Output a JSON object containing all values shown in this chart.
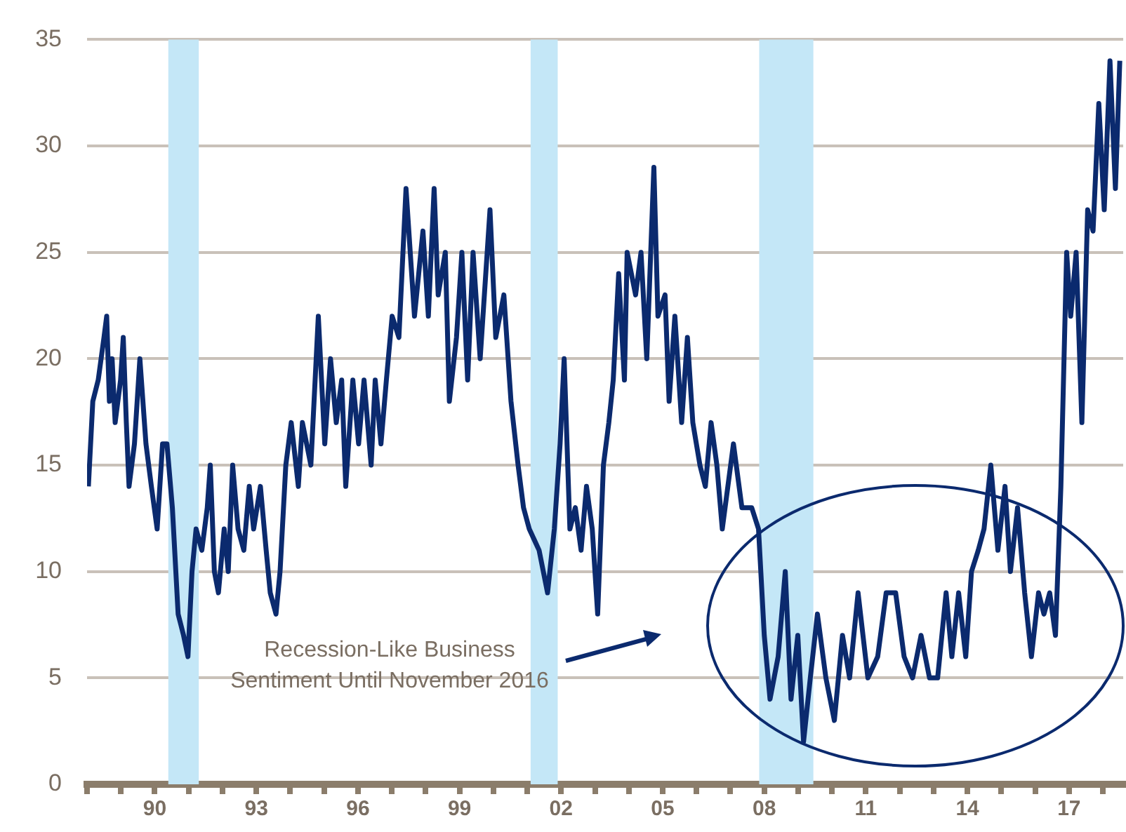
{
  "chart_data": {
    "type": "line",
    "annotations": [
      "Recession-Like Business Sentiment Until November 2016"
    ],
    "x": [
      1988.04,
      1988.17,
      1988.33,
      1988.5,
      1988.58,
      1988.66,
      1988.74,
      1988.83,
      1988.99,
      1989.07,
      1989.16,
      1989.24,
      1989.4,
      1989.56,
      1989.74,
      1989.9,
      1990.07,
      1990.23,
      1990.36,
      1990.52,
      1990.69,
      1990.85,
      1990.98,
      1991.1,
      1991.22,
      1991.39,
      1991.55,
      1991.64,
      1991.76,
      1991.88,
      1992.05,
      1992.17,
      1992.3,
      1992.46,
      1992.63,
      1992.79,
      1992.92,
      1993.12,
      1993.29,
      1993.41,
      1993.58,
      1993.7,
      1993.87,
      1994.03,
      1994.24,
      1994.36,
      1994.61,
      1994.83,
      1995.02,
      1995.19,
      1995.36,
      1995.52,
      1995.64,
      1995.85,
      1996.02,
      1996.18,
      1996.39,
      1996.51,
      1996.68,
      1996.84,
      1997.01,
      1997.21,
      1997.42,
      1997.67,
      1997.92,
      1998.08,
      1998.25,
      1998.37,
      1998.58,
      1998.7,
      1998.91,
      1999.07,
      1999.24,
      1999.4,
      1999.61,
      1999.9,
      2000.07,
      2000.31,
      2000.52,
      2000.73,
      2000.89,
      2001.06,
      2001.35,
      2001.6,
      2001.8,
      2001.97,
      2002.09,
      2002.26,
      2002.42,
      2002.59,
      2002.75,
      2002.92,
      2003.08,
      2003.25,
      2003.41,
      2003.54,
      2003.7,
      2003.87,
      2003.95,
      2004.2,
      2004.36,
      2004.53,
      2004.74,
      2004.86,
      2005.07,
      2005.19,
      2005.36,
      2005.56,
      2005.73,
      2005.89,
      2006.1,
      2006.26,
      2006.43,
      2006.6,
      2006.76,
      2007.09,
      2007.34,
      2007.63,
      2007.83,
      2008.0,
      2008.17,
      2008.41,
      2008.62,
      2008.79,
      2008.99,
      2009.16,
      2009.36,
      2009.57,
      2009.82,
      2010.07,
      2010.31,
      2010.52,
      2010.77,
      2011.06,
      2011.35,
      2011.6,
      2011.88,
      2012.13,
      2012.38,
      2012.63,
      2012.88,
      2013.12,
      2013.37,
      2013.54,
      2013.74,
      2013.95,
      2014.12,
      2014.32,
      2014.49,
      2014.69,
      2014.9,
      2015.11,
      2015.27,
      2015.48,
      2015.69,
      2015.89,
      2016.1,
      2016.26,
      2016.43,
      2016.6,
      2016.76,
      2016.93,
      2017.05,
      2017.21,
      2017.38,
      2017.55,
      2017.71,
      2017.88,
      2018.04,
      2018.21,
      2018.37,
      2018.5
    ],
    "series": [
      {
        "color": "#0b2a6e",
        "values": [
          14,
          18,
          19,
          21,
          22,
          18,
          20,
          17,
          19,
          21,
          17,
          14,
          16,
          20,
          16,
          14,
          12,
          16,
          16,
          13,
          8,
          7,
          6,
          10,
          12,
          11,
          13,
          15,
          10,
          9,
          12,
          10,
          15,
          12,
          11,
          14,
          12,
          14,
          11,
          9,
          8,
          10,
          15,
          17,
          14,
          17,
          15,
          22,
          16,
          20,
          17,
          19,
          14,
          19,
          16,
          19,
          15,
          19,
          16,
          19,
          22,
          21,
          28,
          22,
          26,
          22,
          28,
          23,
          25,
          18,
          21,
          25,
          19,
          25,
          20,
          27,
          21,
          23,
          18,
          15,
          13,
          12,
          11,
          9,
          12,
          16,
          20,
          12,
          13,
          11,
          14,
          12,
          8,
          15,
          17,
          19,
          24,
          19,
          25,
          23,
          25,
          20,
          29,
          22,
          23,
          18,
          22,
          17,
          21,
          17,
          15,
          14,
          17,
          15,
          12,
          16,
          13,
          13,
          12,
          7,
          4,
          6,
          10,
          4,
          7,
          2,
          5,
          8,
          5,
          3,
          7,
          5,
          9,
          5,
          6,
          9,
          9,
          6,
          5,
          7,
          5,
          5,
          9,
          6,
          9,
          6,
          10,
          11,
          12,
          15,
          11,
          14,
          10,
          13,
          9,
          6,
          9,
          8,
          9,
          7,
          14,
          25,
          22,
          25,
          17,
          27,
          26,
          32,
          27,
          34,
          28,
          34
        ]
      }
    ],
    "xlim": [
      1988,
      2018.6
    ],
    "xticks": [
      {
        "value": 1988,
        "label": null
      },
      {
        "value": 1989,
        "label": null
      },
      {
        "value": 1990,
        "label": "90"
      },
      {
        "value": 1991,
        "label": null
      },
      {
        "value": 1992,
        "label": null
      },
      {
        "value": 1993,
        "label": "93"
      },
      {
        "value": 1994,
        "label": null
      },
      {
        "value": 1995,
        "label": null
      },
      {
        "value": 1996,
        "label": "96"
      },
      {
        "value": 1997,
        "label": null
      },
      {
        "value": 1998,
        "label": null
      },
      {
        "value": 1999,
        "label": "99"
      },
      {
        "value": 2000,
        "label": null
      },
      {
        "value": 2001,
        "label": null
      },
      {
        "value": 2002,
        "label": "02"
      },
      {
        "value": 2003,
        "label": null
      },
      {
        "value": 2004,
        "label": null
      },
      {
        "value": 2005,
        "label": "05"
      },
      {
        "value": 2006,
        "label": null
      },
      {
        "value": 2007,
        "label": null
      },
      {
        "value": 2008,
        "label": "08"
      },
      {
        "value": 2009,
        "label": null
      },
      {
        "value": 2010,
        "label": null
      },
      {
        "value": 2011,
        "label": "11"
      },
      {
        "value": 2012,
        "label": null
      },
      {
        "value": 2013,
        "label": null
      },
      {
        "value": 2014,
        "label": "14"
      },
      {
        "value": 2015,
        "label": null
      },
      {
        "value": 2016,
        "label": null
      },
      {
        "value": 2017,
        "label": "17"
      },
      {
        "value": 2018,
        "label": null
      }
    ],
    "ylim": [
      0,
      35
    ],
    "yticks": [
      0,
      5,
      10,
      15,
      20,
      25,
      30,
      35
    ],
    "bands": [
      {
        "axis": "x",
        "from": 1990.4,
        "to": 1991.3,
        "color": "#c4e7f7"
      },
      {
        "axis": "x",
        "from": 2001.1,
        "to": 2001.9,
        "color": "#c4e7f7"
      },
      {
        "axis": "x",
        "from": 2007.85,
        "to": 2009.45,
        "color": "#c4e7f7"
      }
    ],
    "grid": "y",
    "legend": false,
    "marker": "none",
    "line_style": "solid"
  }
}
